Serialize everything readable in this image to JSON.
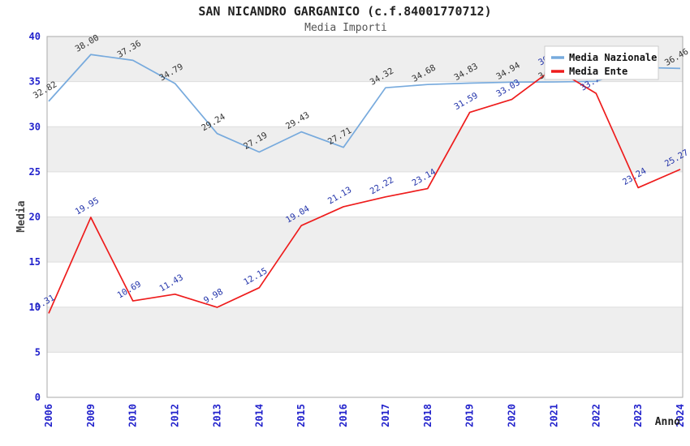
{
  "header": {
    "title": "SAN NICANDRO GARGANICO (c.f.84001770712)",
    "subtitle": "Media Importi"
  },
  "chart_data": {
    "type": "line",
    "categories": [
      "2006",
      "2009",
      "2010",
      "2012",
      "2013",
      "2014",
      "2015",
      "2016",
      "2017",
      "2018",
      "2019",
      "2020",
      "2021",
      "2022",
      "2023",
      "2024"
    ],
    "xlabel": "Anno",
    "ylabel": "Media",
    "ylim": [
      0,
      40
    ],
    "yticks": [
      0,
      5,
      10,
      15,
      20,
      25,
      30,
      35,
      40
    ],
    "grid": true,
    "plot_bands_alternating": true,
    "value_label_decimals": 2,
    "legend": {
      "position": "top-right",
      "entries": [
        "Media Nazionale",
        "Media Ente"
      ]
    },
    "series": [
      {
        "name": "Media Nazionale",
        "color": "#77aadd",
        "label_color": "#333333",
        "values": [
          32.82,
          38.0,
          37.36,
          34.79,
          29.24,
          27.19,
          29.43,
          27.71,
          34.32,
          34.68,
          34.83,
          34.94,
          34.96,
          35.03,
          36.58,
          36.46
        ]
      },
      {
        "name": "Media Ente",
        "color": "#ee1c1c",
        "label_color": "#2233aa",
        "values": [
          9.31,
          19.95,
          10.69,
          11.43,
          9.98,
          12.15,
          19.04,
          21.13,
          22.22,
          23.14,
          31.59,
          33.03,
          36.5,
          33.7,
          23.24,
          25.27
        ]
      }
    ]
  },
  "colors": {
    "tick_label": "#2222cc",
    "band": "#eeeeee",
    "grid_line": "#dddddd",
    "plot_border": "#aaaaaa",
    "background": "#ffffff",
    "legend_border": "#cccccc",
    "title": "#222222",
    "subtitle": "#555555"
  }
}
